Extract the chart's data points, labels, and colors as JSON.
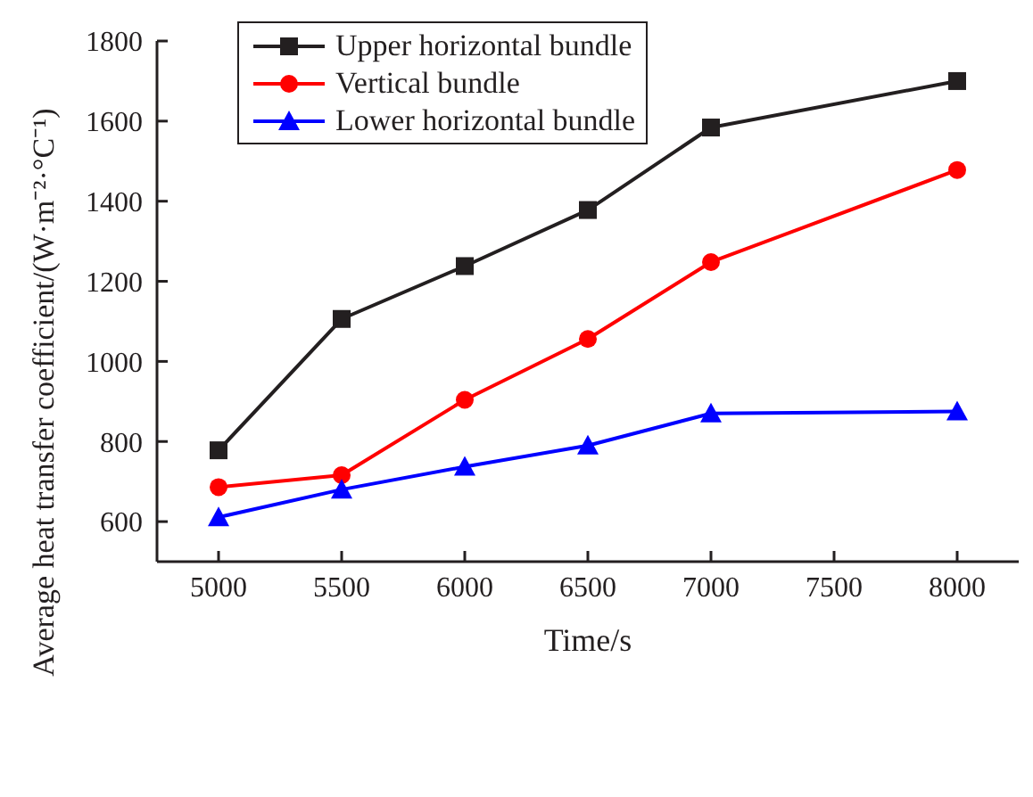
{
  "chart_data": {
    "type": "line",
    "xlabel": "Time/s",
    "ylabel": "Average heat transfer coefficient/(W·m⁻²·°C⁻¹)",
    "x": [
      5000,
      5500,
      6000,
      6500,
      7000,
      8000
    ],
    "series": [
      {
        "name": "Upper horizontal bundle",
        "color": "#231f20",
        "marker": "square",
        "values": [
          778,
          1106,
          1238,
          1378,
          1584,
          1700
        ]
      },
      {
        "name": "Vertical bundle",
        "color": "#ff0000",
        "marker": "circle",
        "values": [
          686,
          716,
          904,
          1056,
          1248,
          1478
        ]
      },
      {
        "name": "Lower horizontal bundle",
        "color": "#0000ff",
        "marker": "triangle",
        "values": [
          611,
          680,
          737,
          790,
          870,
          875
        ]
      }
    ],
    "xlim": [
      4750,
      8250
    ],
    "xticks": [
      5000,
      5500,
      6000,
      6500,
      7000,
      7500,
      8000
    ],
    "ylim": [
      500,
      1800
    ],
    "yticks": [
      600,
      800,
      1000,
      1200,
      1400,
      1600,
      1800
    ],
    "grid": false,
    "legend": "top left",
    "line_style": "solid"
  }
}
